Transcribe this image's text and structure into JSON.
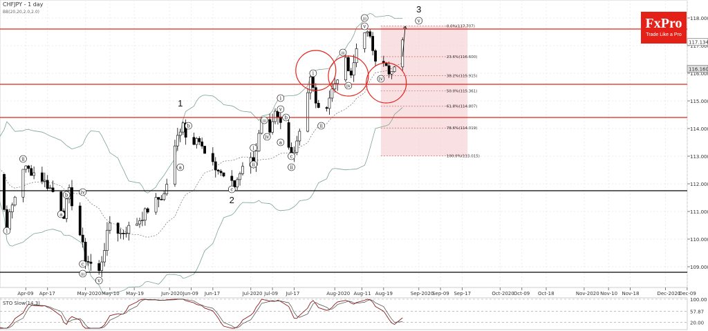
{
  "header": {
    "symbol_title": "CHFJPY - 1 day",
    "indicator_label": "BB(20,20,2.0,2.0)",
    "sto_label": "STO Slow(14,3)"
  },
  "logo": {
    "name": "FxPro",
    "tagline": "Trade Like a Pro"
  },
  "colors": {
    "candle_bull": "#ffffff",
    "candle_bear": "#000000",
    "bollinger": "#7aa58e",
    "ma": "#555555",
    "resistance_red": "#e32119",
    "support_black": "#000000",
    "fib_zone": "#f6d3d5",
    "sto_main": "#8b1a1a",
    "sto_signal": "#444444"
  },
  "chart_data": {
    "type": "candlestick",
    "y_axis_ticks": [
      "118.000",
      "117.000",
      "116.000",
      "115.000",
      "114.000",
      "113.000",
      "112.000",
      "111.000",
      "110.000",
      "109.000"
    ],
    "ylim": [
      108.3,
      118.6
    ],
    "price_labels": [
      "117.134",
      "116.160"
    ],
    "x_axis_ticks": [
      "Apr-09",
      "Apr-17",
      "May-2020",
      "May-10",
      "May-19",
      "Jun-2020",
      "Jun-09",
      "Jun-17",
      "Jul-2020",
      "Jul-09",
      "Jul-17",
      "Aug-2020",
      "Aug-11",
      "Aug-19",
      "Sep-2020",
      "Sep-09",
      "Sep-17",
      "Oct-2020",
      "Oct-09",
      "Oct-18",
      "Nov-2020",
      "Nov-10",
      "Nov-18",
      "Dec-2020",
      "Dec-09"
    ],
    "horizontal_levels": [
      {
        "price": 117.6,
        "color": "red"
      },
      {
        "price": 115.6,
        "color": "red"
      },
      {
        "price": 114.4,
        "color": "red"
      },
      {
        "price": 111.75,
        "color": "black"
      },
      {
        "price": 108.8,
        "color": "black"
      }
    ],
    "fibonacci": [
      {
        "label": "0.0%(117.707)",
        "price": 117.707
      },
      {
        "label": "23.6%(116.600)",
        "price": 116.6
      },
      {
        "label": "38.2%(115.915)",
        "price": 115.915
      },
      {
        "label": "50.0%(115.361)",
        "price": 115.361
      },
      {
        "label": "61.8%(114.807)",
        "price": 114.807
      },
      {
        "label": "78.6%(114.019)",
        "price": 114.019
      },
      {
        "label": "100.0%(113.015)",
        "price": 113.015
      }
    ],
    "wave_labels": [
      {
        "text": "i",
        "date": "Apr-02",
        "price": 110.3
      },
      {
        "text": "ii",
        "date": "Apr-08",
        "price": 112.9
      },
      {
        "text": "a",
        "date": "Apr-22",
        "price": 110.9
      },
      {
        "text": "b",
        "date": "Apr-24",
        "price": 111.6
      },
      {
        "text": "iv",
        "date": "Apr-30",
        "price": 111.7
      },
      {
        "text": "c",
        "date": "Apr-30",
        "price": 109.1
      },
      {
        "text": "iii",
        "date": "Apr-30",
        "price": 108.75
      },
      {
        "text": "v",
        "date": "May-06",
        "price": 108.5
      },
      {
        "text": "a",
        "date": "Jun-05",
        "price": 112.6
      },
      {
        "text": "b",
        "date": "Jun-08",
        "price": 114.1
      },
      {
        "text": "c",
        "date": "Jun-24",
        "price": 111.8
      },
      {
        "text": "i",
        "date": "Jul-02",
        "price": 113.3
      },
      {
        "text": "ii",
        "date": "Jul-02",
        "price": 112.7
      },
      {
        "text": "iii",
        "date": "Jul-06",
        "price": 114.3
      },
      {
        "text": "iv",
        "date": "Jul-07",
        "price": 113.7
      },
      {
        "text": "v",
        "date": "Jul-12",
        "price": 114.7
      },
      {
        "text": "i",
        "date": "Jul-12",
        "price": 115.1
      },
      {
        "text": "a",
        "date": "Jul-12",
        "price": 113.5
      },
      {
        "text": "b",
        "date": "Jul-14",
        "price": 114.4
      },
      {
        "text": "c",
        "date": "Jul-16",
        "price": 113.0
      },
      {
        "text": "ii",
        "date": "Jul-16",
        "price": 112.6
      },
      {
        "text": "i",
        "date": "Jul-24",
        "price": 116.0
      },
      {
        "text": "ii",
        "date": "Jul-27",
        "price": 114.1
      },
      {
        "text": "iii",
        "date": "Aug-04",
        "price": 116.75
      },
      {
        "text": "iv",
        "date": "Aug-06",
        "price": 115.55
      },
      {
        "text": "v",
        "date": "Aug-12",
        "price": 117.7
      },
      {
        "text": "iii",
        "date": "Aug-12",
        "price": 118.0
      },
      {
        "text": "iv",
        "date": "Aug-18",
        "price": 115.8
      },
      {
        "text": "v",
        "date": "Sep-01",
        "price": 117.9
      }
    ],
    "major_wave_labels": [
      {
        "text": "1",
        "date": "Jun-05",
        "price": 114.8
      },
      {
        "text": "2",
        "date": "Jun-24",
        "price": 111.3
      },
      {
        "text": "3",
        "date": "Sep-01",
        "price": 118.2
      }
    ],
    "sto": {
      "y_ticks": [
        "100.00",
        "57.87",
        "20.00"
      ],
      "ylim": [
        0,
        100
      ]
    }
  }
}
